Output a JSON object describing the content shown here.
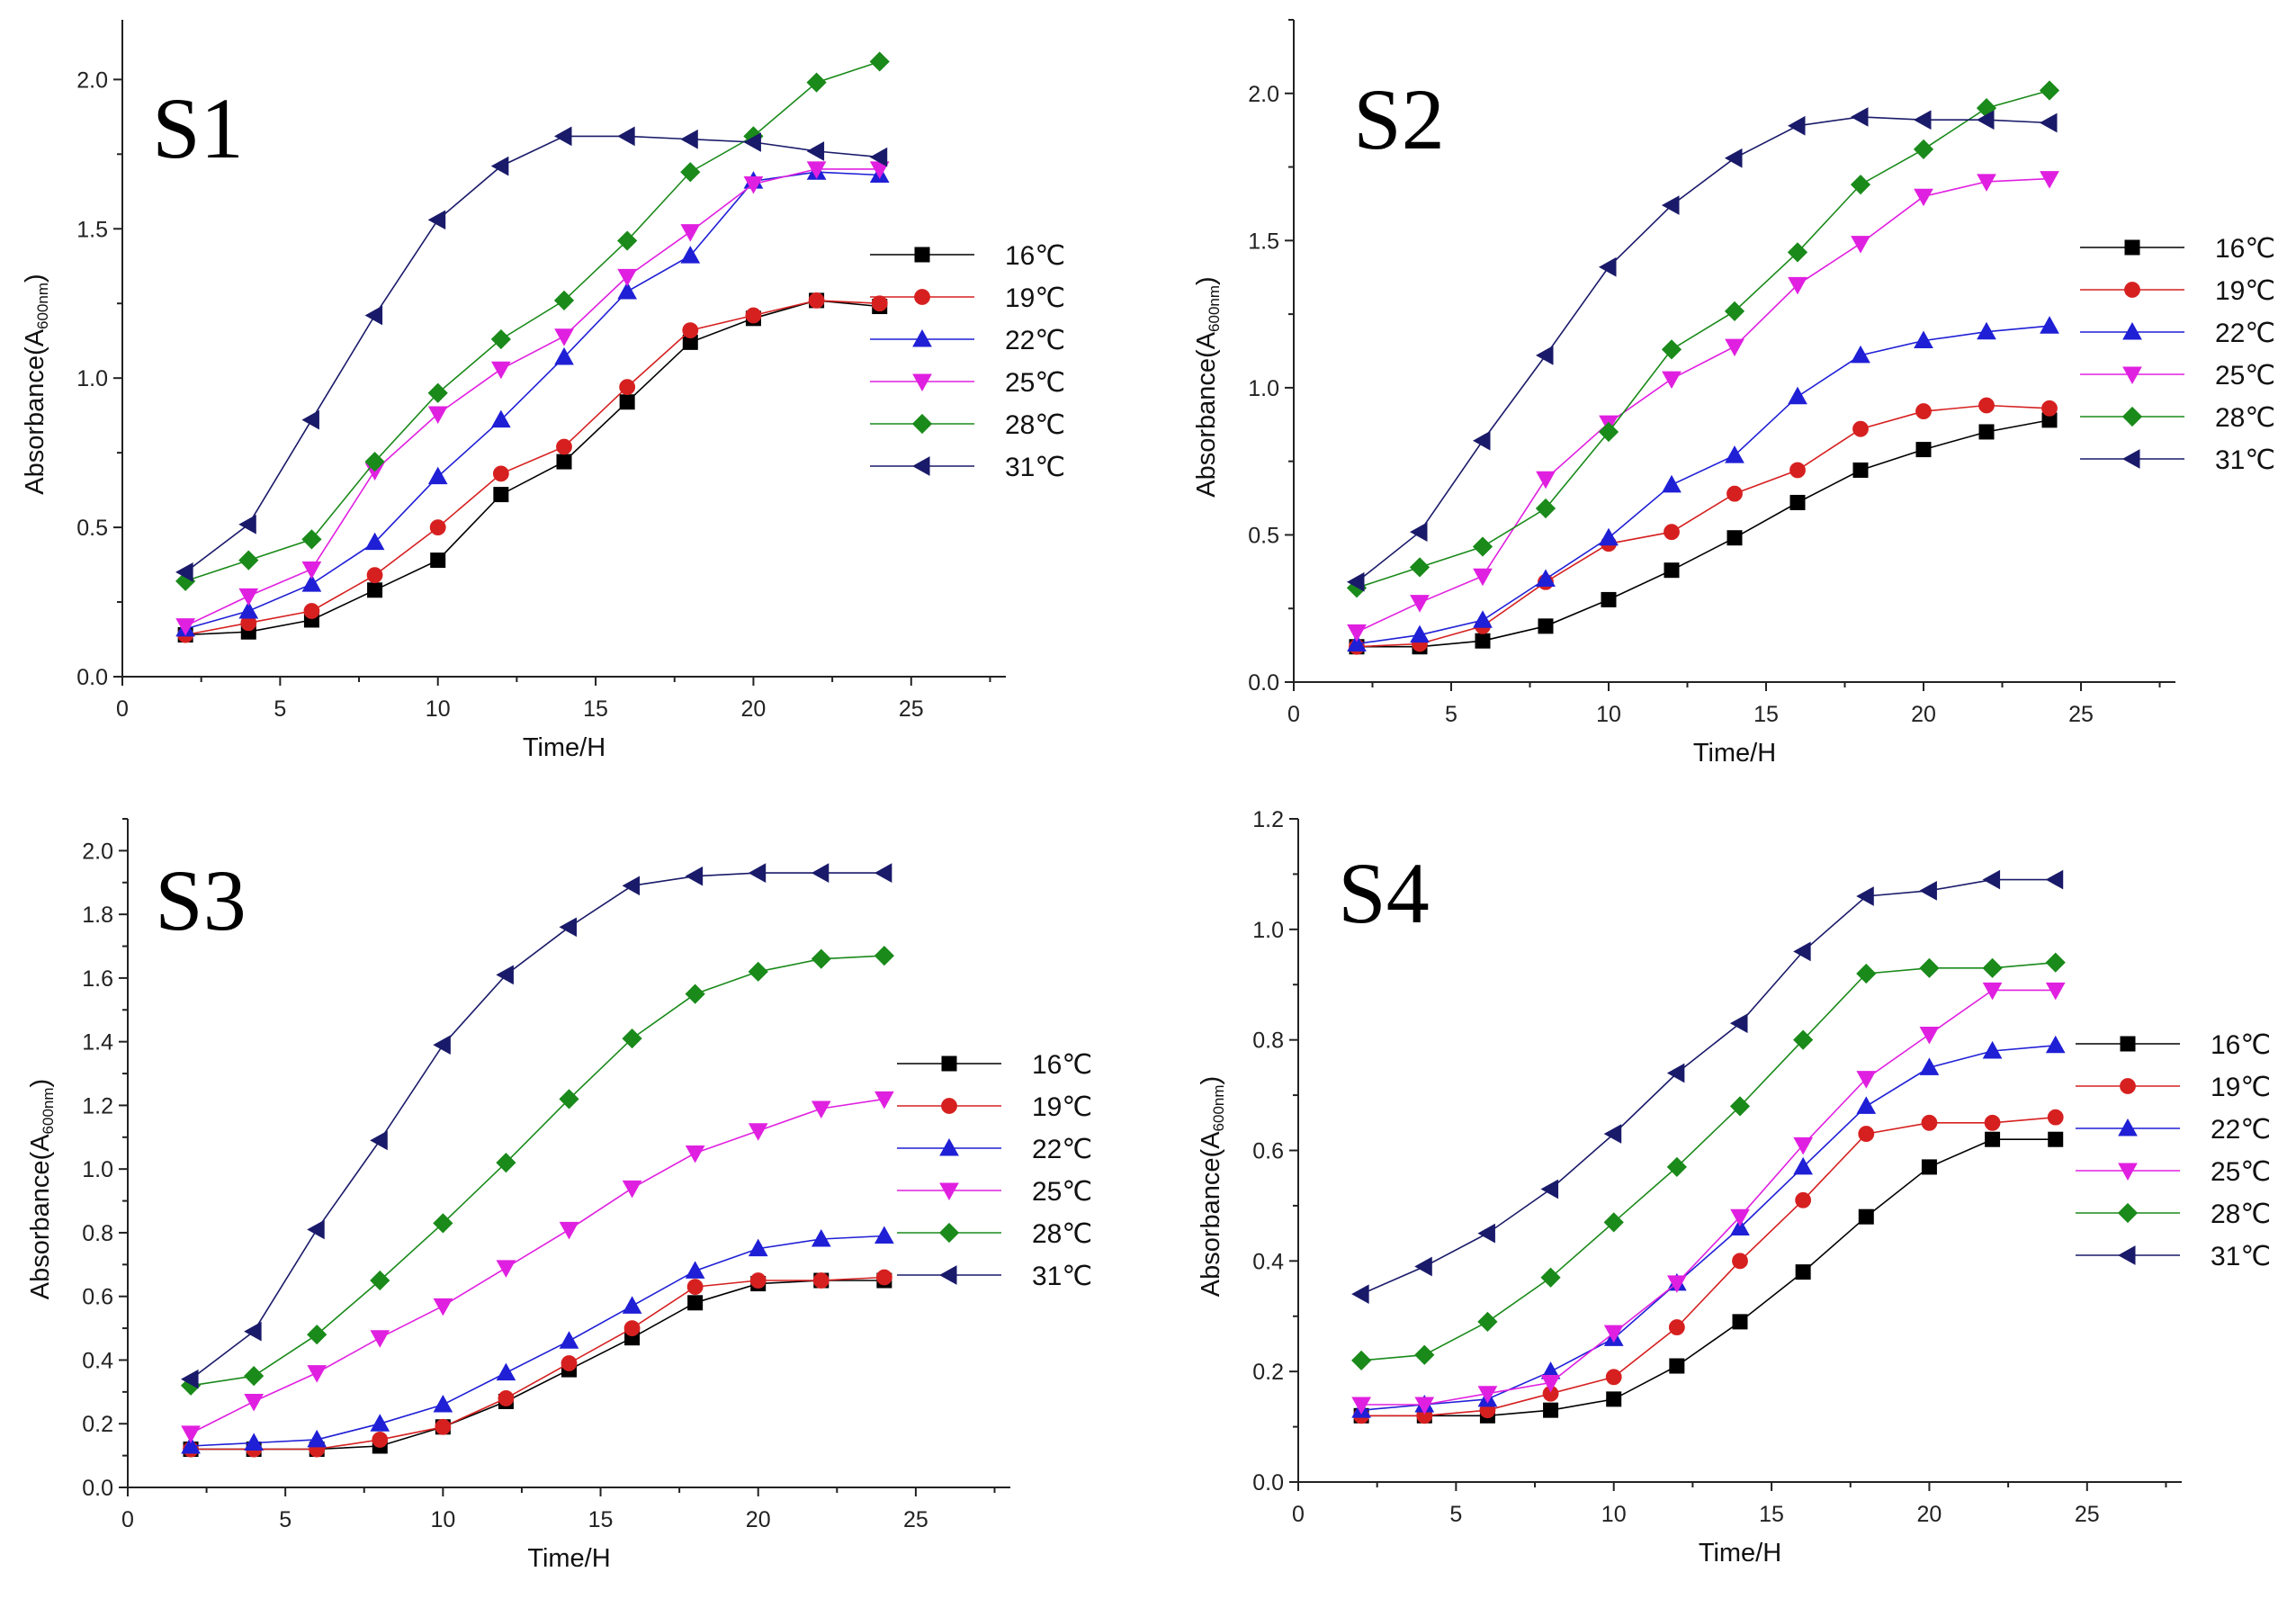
{
  "legend_colors": {
    "16℃": "#000000",
    "19℃": "#d62020",
    "22℃": "#1f1fd6",
    "25℃": "#e020e0",
    "28℃": "#1a8a1a",
    "31℃": "#1a1a6a"
  },
  "legend_markers": {
    "16℃": "square",
    "19℃": "circle",
    "22℃": "triangle-up",
    "25℃": "triangle-down",
    "28℃": "diamond",
    "31℃": "triangle-left"
  },
  "chart_data": [
    {
      "type": "line",
      "title": "S1",
      "xlabel": "Time/H",
      "ylabel": "Absorbance(A",
      "ylabel_sub": "600nm",
      "ylabel_end": ")",
      "xlim": [
        0,
        28
      ],
      "ylim": [
        0,
        2.2
      ],
      "xticks": [
        0,
        5,
        10,
        15,
        20,
        25
      ],
      "yticks": [
        0.0,
        0.5,
        1.0,
        1.5,
        2.0
      ],
      "ytick_labels": [
        "0.0",
        "0.5",
        "1.0",
        "1.5",
        "2.0"
      ],
      "legend": "right",
      "x": [
        2,
        4,
        6,
        8,
        10,
        12,
        14,
        16,
        18,
        20,
        22,
        24
      ],
      "series": [
        {
          "name": "16℃",
          "values": [
            0.14,
            0.15,
            0.19,
            0.29,
            0.39,
            0.61,
            0.72,
            0.92,
            1.12,
            1.2,
            1.26,
            1.24
          ]
        },
        {
          "name": "19℃",
          "values": [
            0.14,
            0.18,
            0.22,
            0.34,
            0.5,
            0.68,
            0.77,
            0.97,
            1.16,
            1.21,
            1.26,
            1.25
          ]
        },
        {
          "name": "22℃",
          "values": [
            0.16,
            0.22,
            0.31,
            0.45,
            0.67,
            0.86,
            1.07,
            1.29,
            1.41,
            1.66,
            1.69,
            1.68
          ]
        },
        {
          "name": "25℃",
          "values": [
            0.17,
            0.27,
            0.36,
            0.69,
            0.88,
            1.03,
            1.14,
            1.34,
            1.49,
            1.65,
            1.7,
            1.7
          ]
        },
        {
          "name": "28℃",
          "values": [
            0.32,
            0.39,
            0.46,
            0.72,
            0.95,
            1.13,
            1.26,
            1.46,
            1.69,
            1.81,
            1.99,
            2.06
          ]
        },
        {
          "name": "31℃",
          "values": [
            0.35,
            0.51,
            0.86,
            1.21,
            1.53,
            1.71,
            1.81,
            1.81,
            1.8,
            1.79,
            1.76,
            1.74
          ]
        }
      ]
    },
    {
      "type": "line",
      "title": "S2",
      "xlabel": "Time/H",
      "ylabel": "Absorbance(A",
      "ylabel_sub": "600nm",
      "ylabel_end": ")",
      "xlim": [
        0,
        28
      ],
      "ylim": [
        0,
        2.25
      ],
      "xticks": [
        0,
        5,
        10,
        15,
        20,
        25
      ],
      "yticks": [
        0.0,
        0.5,
        1.0,
        1.5,
        2.0
      ],
      "ytick_labels": [
        "0.0",
        "0.5",
        "1.0",
        "1.5",
        "2.0"
      ],
      "legend": "right",
      "x": [
        2,
        4,
        6,
        8,
        10,
        12,
        14,
        16,
        18,
        20,
        22,
        24
      ],
      "series": [
        {
          "name": "16℃",
          "values": [
            0.12,
            0.12,
            0.14,
            0.19,
            0.28,
            0.38,
            0.49,
            0.61,
            0.72,
            0.79,
            0.85,
            0.89
          ]
        },
        {
          "name": "19℃",
          "values": [
            0.12,
            0.13,
            0.19,
            0.34,
            0.47,
            0.51,
            0.64,
            0.72,
            0.86,
            0.92,
            0.94,
            0.93
          ]
        },
        {
          "name": "22℃",
          "values": [
            0.13,
            0.16,
            0.21,
            0.35,
            0.49,
            0.67,
            0.77,
            0.97,
            1.11,
            1.16,
            1.19,
            1.21
          ]
        },
        {
          "name": "25℃",
          "values": [
            0.17,
            0.27,
            0.36,
            0.69,
            0.88,
            1.03,
            1.14,
            1.35,
            1.49,
            1.65,
            1.7,
            1.71
          ]
        },
        {
          "name": "28℃",
          "values": [
            0.32,
            0.39,
            0.46,
            0.59,
            0.85,
            1.13,
            1.26,
            1.46,
            1.69,
            1.81,
            1.95,
            2.01
          ]
        },
        {
          "name": "31℃",
          "values": [
            0.34,
            0.51,
            0.82,
            1.11,
            1.41,
            1.62,
            1.78,
            1.89,
            1.92,
            1.91,
            1.91,
            1.9
          ]
        }
      ]
    },
    {
      "type": "line",
      "title": "S3",
      "xlabel": "Time/H",
      "ylabel": "Absorbance(A",
      "ylabel_sub": "600nm",
      "ylabel_end": ")",
      "xlim": [
        0,
        28
      ],
      "ylim": [
        0,
        2.1
      ],
      "xticks": [
        0,
        5,
        10,
        15,
        20,
        25
      ],
      "yticks": [
        0.0,
        0.2,
        0.4,
        0.6,
        0.8,
        1.0,
        1.2,
        1.4,
        1.6,
        1.8,
        2.0
      ],
      "ytick_labels": [
        "0.0",
        "0.2",
        "0.4",
        "0.6",
        "0.8",
        "1.0",
        "1.2",
        "1.4",
        "1.6",
        "1.8",
        "2.0"
      ],
      "legend": "right",
      "x": [
        2,
        4,
        6,
        8,
        10,
        12,
        14,
        16,
        18,
        20,
        22,
        24
      ],
      "series": [
        {
          "name": "16℃",
          "values": [
            0.12,
            0.12,
            0.12,
            0.13,
            0.19,
            0.27,
            0.37,
            0.47,
            0.58,
            0.64,
            0.65,
            0.65
          ]
        },
        {
          "name": "19℃",
          "values": [
            0.12,
            0.12,
            0.12,
            0.15,
            0.19,
            0.28,
            0.39,
            0.5,
            0.63,
            0.65,
            0.65,
            0.66
          ]
        },
        {
          "name": "22℃",
          "values": [
            0.13,
            0.14,
            0.15,
            0.2,
            0.26,
            0.36,
            0.46,
            0.57,
            0.68,
            0.75,
            0.78,
            0.79
          ]
        },
        {
          "name": "25℃",
          "values": [
            0.17,
            0.27,
            0.36,
            0.47,
            0.57,
            0.69,
            0.81,
            0.94,
            1.05,
            1.12,
            1.19,
            1.22
          ]
        },
        {
          "name": "28℃",
          "values": [
            0.32,
            0.35,
            0.48,
            0.65,
            0.83,
            1.02,
            1.22,
            1.41,
            1.55,
            1.62,
            1.66,
            1.67
          ]
        },
        {
          "name": "31℃",
          "values": [
            0.34,
            0.49,
            0.81,
            1.09,
            1.39,
            1.61,
            1.76,
            1.89,
            1.92,
            1.93,
            1.93,
            1.93
          ]
        }
      ]
    },
    {
      "type": "line",
      "title": "S4",
      "xlabel": "Time/H",
      "ylabel": "Absorbance(A",
      "ylabel_sub": "600nm",
      "ylabel_end": ")",
      "xlim": [
        0,
        28
      ],
      "ylim": [
        0,
        1.2
      ],
      "xticks": [
        0,
        5,
        10,
        15,
        20,
        25
      ],
      "yticks": [
        0.0,
        0.2,
        0.4,
        0.6,
        0.8,
        1.0,
        1.2
      ],
      "ytick_labels": [
        "0.0",
        "0.2",
        "0.4",
        "0.6",
        "0.8",
        "1.0",
        "1.2"
      ],
      "legend": "right",
      "x": [
        2,
        4,
        6,
        8,
        10,
        12,
        14,
        16,
        18,
        20,
        22,
        24
      ],
      "series": [
        {
          "name": "16℃",
          "values": [
            0.12,
            0.12,
            0.12,
            0.13,
            0.15,
            0.21,
            0.29,
            0.38,
            0.48,
            0.57,
            0.62,
            0.62
          ]
        },
        {
          "name": "19℃",
          "values": [
            0.12,
            0.12,
            0.13,
            0.16,
            0.19,
            0.28,
            0.4,
            0.51,
            0.63,
            0.65,
            0.65,
            0.66
          ]
        },
        {
          "name": "22℃",
          "values": [
            0.13,
            0.14,
            0.15,
            0.2,
            0.26,
            0.36,
            0.46,
            0.57,
            0.68,
            0.75,
            0.78,
            0.79
          ]
        },
        {
          "name": "25℃",
          "values": [
            0.14,
            0.14,
            0.16,
            0.18,
            0.27,
            0.36,
            0.48,
            0.61,
            0.73,
            0.81,
            0.89,
            0.89
          ]
        },
        {
          "name": "28℃",
          "values": [
            0.22,
            0.23,
            0.29,
            0.37,
            0.47,
            0.57,
            0.68,
            0.8,
            0.92,
            0.93,
            0.93,
            0.94
          ]
        },
        {
          "name": "31℃",
          "values": [
            0.34,
            0.39,
            0.45,
            0.53,
            0.63,
            0.74,
            0.83,
            0.96,
            1.06,
            1.07,
            1.09,
            1.09
          ]
        }
      ]
    }
  ]
}
